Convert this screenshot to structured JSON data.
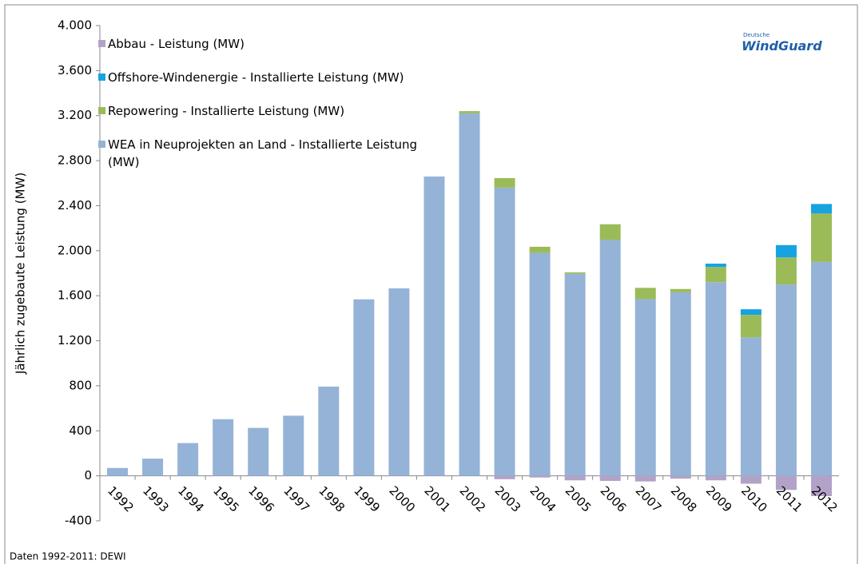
{
  "chart_data": {
    "type": "bar",
    "stacked": true,
    "y_label": "Jährlich zugebaute Leistung (MW)",
    "source": "Daten 1992-2011: DEWI",
    "logo": {
      "top": "Deutsche",
      "main": "WindGuard"
    },
    "categories": [
      "1992",
      "1993",
      "1994",
      "1995",
      "1996",
      "1997",
      "1998",
      "1999",
      "2000",
      "2001",
      "2002",
      "2003",
      "2004",
      "2005",
      "2006",
      "2007",
      "2008",
      "2009",
      "2010",
      "2011",
      "2012"
    ],
    "series": [
      {
        "name": "Abbau - Leistung (MW)",
        "color": "#b3a2c7",
        "values": [
          0,
          0,
          0,
          0,
          0,
          0,
          0,
          0,
          0,
          0,
          0,
          -30,
          -15,
          -40,
          -45,
          -50,
          -25,
          -40,
          -70,
          -125,
          -180
        ]
      },
      {
        "name": "Offshore-Windenergie - Installierte Leistung (MW)",
        "color": "#17a3e0",
        "values": [
          0,
          0,
          0,
          0,
          0,
          0,
          0,
          0,
          0,
          0,
          0,
          0,
          0,
          0,
          0,
          0,
          0,
          30,
          50,
          110,
          85
        ]
      },
      {
        "name": "Repowering - Installierte Leistung (MW)",
        "color": "#9bbb59",
        "values": [
          0,
          0,
          0,
          0,
          0,
          0,
          0,
          0,
          0,
          0,
          20,
          85,
          55,
          13,
          140,
          100,
          30,
          135,
          200,
          240,
          430
        ]
      },
      {
        "name": "WEA in Neuprojekten an Land - Installierte Leistung (MW)",
        "color": "#95b3d7",
        "values": [
          70,
          153,
          291,
          503,
          426,
          534,
          793,
          1568,
          1665,
          2659,
          3220,
          2560,
          1980,
          1795,
          2095,
          1570,
          1630,
          1720,
          1230,
          1700,
          1900
        ]
      }
    ],
    "ylim": [
      -400,
      4000
    ],
    "yticks": [
      -400,
      0,
      400,
      800,
      {
        "value": 1200,
        "label": "1.200"
      },
      {
        "value": 1600,
        "label": "1.600"
      },
      {
        "value": 2000,
        "label": "2.000"
      },
      {
        "value": 2400,
        "label": "2.400"
      },
      {
        "value": 2800,
        "label": "2.800"
      },
      {
        "value": 3200,
        "label": "3.200"
      },
      {
        "value": 3600,
        "label": "3.600"
      },
      {
        "value": 4000,
        "label": "4.000"
      }
    ],
    "grid": false
  }
}
